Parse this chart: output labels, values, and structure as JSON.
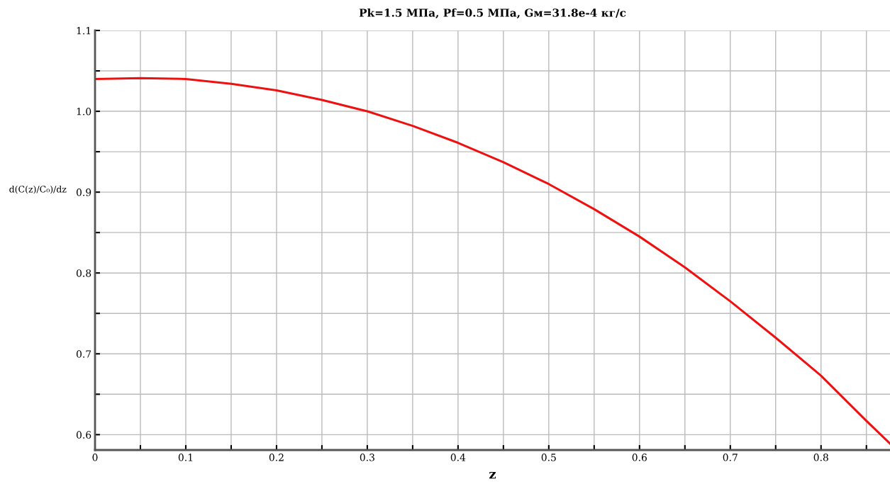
{
  "chart_data": {
    "type": "line",
    "title": "Pk=1.5 МПа, Pf=0.5 МПа, Gм=31.8e-4 кг/с",
    "xlabel": "z",
    "ylabel": "d(C(z)/C₀)/dz",
    "x": [
      0,
      0.05,
      0.1,
      0.15,
      0.2,
      0.25,
      0.3,
      0.35,
      0.4,
      0.45,
      0.5,
      0.55,
      0.6,
      0.65,
      0.7,
      0.75,
      0.8,
      0.85,
      0.876
    ],
    "series": [
      {
        "color": "#ee1111",
        "values": [
          1.04,
          1.041,
          1.04,
          1.034,
          1.026,
          1.014,
          1.0,
          0.982,
          0.961,
          0.937,
          0.91,
          0.879,
          0.845,
          0.807,
          0.765,
          0.72,
          0.673,
          0.617,
          0.589
        ]
      }
    ],
    "xlim": [
      0,
      0.876
    ],
    "ylim": [
      0.581,
      1.1
    ],
    "xticks": [
      0,
      {
        "value": 0.05,
        "label": null
      },
      0.1,
      {
        "value": 0.15,
        "label": null
      },
      0.2,
      {
        "value": 0.25,
        "label": null
      },
      0.3,
      {
        "value": 0.35,
        "label": null
      },
      0.4,
      {
        "value": 0.45,
        "label": null
      },
      0.5,
      {
        "value": 0.55,
        "label": null
      },
      0.6,
      {
        "value": 0.65,
        "label": null
      },
      0.7,
      {
        "value": 0.75,
        "label": null
      },
      0.8,
      {
        "value": 0.85,
        "label": null
      }
    ],
    "yticks": [
      0.6,
      {
        "value": 0.65,
        "label": null
      },
      0.7,
      {
        "value": 0.75,
        "label": null
      },
      0.8,
      {
        "value": 0.85,
        "label": null
      },
      0.9,
      {
        "value": 0.95,
        "label": null
      },
      {
        "value": 1.0,
        "label": "1.0"
      },
      {
        "value": 1.05,
        "label": null
      },
      1.1
    ],
    "grid": true,
    "marker": "none",
    "line_style": "solid",
    "legend": false
  }
}
